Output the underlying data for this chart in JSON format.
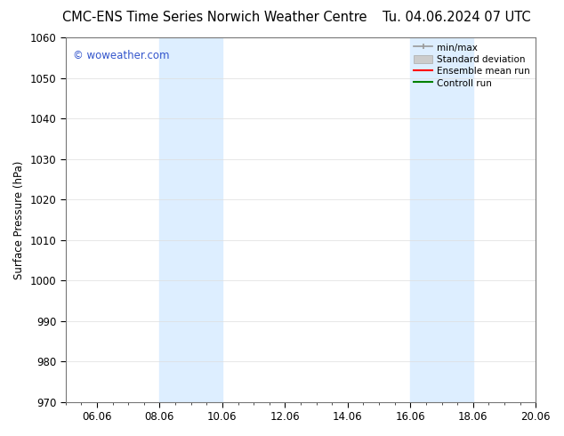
{
  "title_left": "CMC-ENS Time Series Norwich Weather Centre",
  "title_right": "Tu. 04.06.2024 07 UTC",
  "ylabel": "Surface Pressure (hPa)",
  "ylim": [
    970,
    1060
  ],
  "yticks": [
    970,
    980,
    990,
    1000,
    1010,
    1020,
    1030,
    1040,
    1050,
    1060
  ],
  "xlim": [
    0,
    15
  ],
  "xtick_labels": [
    "06.06",
    "08.06",
    "10.06",
    "12.06",
    "14.06",
    "16.06",
    "18.06",
    "20.06"
  ],
  "xtick_positions": [
    1,
    3,
    5,
    7,
    9,
    11,
    13,
    15
  ],
  "shade_bands": [
    {
      "x_start": 3,
      "x_end": 5,
      "color": "#ddeeff"
    },
    {
      "x_start": 11,
      "x_end": 13,
      "color": "#ddeeff"
    }
  ],
  "watermark": "© woweather.com",
  "watermark_color": "#3355cc",
  "legend_items": [
    {
      "label": "min/max",
      "color": "#999999",
      "lw": 1.2,
      "ls": "-",
      "type": "line_caps"
    },
    {
      "label": "Standard deviation",
      "color": "#cccccc",
      "lw": 8,
      "ls": "-",
      "type": "patch"
    },
    {
      "label": "Ensemble mean run",
      "color": "#ff0000",
      "lw": 1.5,
      "ls": "-",
      "type": "line"
    },
    {
      "label": "Controll run",
      "color": "#008000",
      "lw": 1.5,
      "ls": "-",
      "type": "line"
    }
  ],
  "bg_color": "#ffffff",
  "grid_color": "#dddddd",
  "title_fontsize": 10.5,
  "legend_fontsize": 7.5,
  "axis_fontsize": 8.5,
  "watermark_fontsize": 8.5
}
